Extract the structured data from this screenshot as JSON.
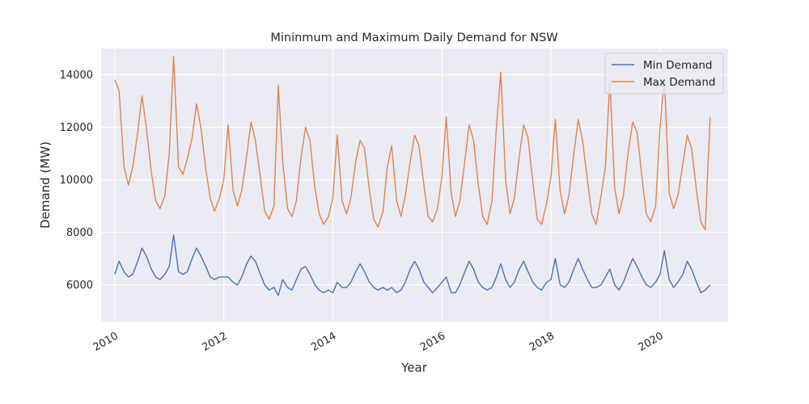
{
  "chart_data": {
    "type": "line",
    "title": "Mininmum and Maximum Daily Demand for NSW",
    "xlabel": "Year",
    "ylabel": "Demand (MW)",
    "xlim": [
      2009.75,
      2021.25
    ],
    "ylim": [
      4600,
      15000
    ],
    "x_ticks": [
      2010,
      2012,
      2014,
      2016,
      2018,
      2020
    ],
    "x_tick_labels": [
      "2010",
      "2012",
      "2014",
      "2016",
      "2018",
      "2020"
    ],
    "y_ticks": [
      6000,
      8000,
      10000,
      12000,
      14000
    ],
    "y_tick_labels": [
      "6000",
      "8000",
      "10000",
      "12000",
      "14000"
    ],
    "grid": true,
    "legend_position": "top-right",
    "colors": {
      "plot_background": "#eaeaf2",
      "grid": "#ffffff",
      "min_series": "#4c72b0",
      "max_series": "#dd8452"
    },
    "series": [
      {
        "name": "Min Demand",
        "color": "#4c72b0",
        "x": [
          2010.0,
          2010.08,
          2010.17,
          2010.25,
          2010.33,
          2010.42,
          2010.5,
          2010.58,
          2010.67,
          2010.75,
          2010.83,
          2010.92,
          2011.0,
          2011.08,
          2011.17,
          2011.25,
          2011.33,
          2011.42,
          2011.5,
          2011.58,
          2011.67,
          2011.75,
          2011.83,
          2011.92,
          2012.0,
          2012.08,
          2012.17,
          2012.25,
          2012.33,
          2012.42,
          2012.5,
          2012.58,
          2012.67,
          2012.75,
          2012.83,
          2012.92,
          2013.0,
          2013.08,
          2013.17,
          2013.25,
          2013.33,
          2013.42,
          2013.5,
          2013.58,
          2013.67,
          2013.75,
          2013.83,
          2013.92,
          2014.0,
          2014.08,
          2014.17,
          2014.25,
          2014.33,
          2014.42,
          2014.5,
          2014.58,
          2014.67,
          2014.75,
          2014.83,
          2014.92,
          2015.0,
          2015.08,
          2015.17,
          2015.25,
          2015.33,
          2015.42,
          2015.5,
          2015.58,
          2015.67,
          2015.75,
          2015.83,
          2015.92,
          2016.0,
          2016.08,
          2016.17,
          2016.25,
          2016.33,
          2016.42,
          2016.5,
          2016.58,
          2016.67,
          2016.75,
          2016.83,
          2016.92,
          2017.0,
          2017.08,
          2017.17,
          2017.25,
          2017.33,
          2017.42,
          2017.5,
          2017.58,
          2017.67,
          2017.75,
          2017.83,
          2017.92,
          2018.0,
          2018.08,
          2018.17,
          2018.25,
          2018.33,
          2018.42,
          2018.5,
          2018.58,
          2018.67,
          2018.75,
          2018.83,
          2018.92,
          2019.0,
          2019.08,
          2019.17,
          2019.25,
          2019.33,
          2019.42,
          2019.5,
          2019.58,
          2019.67,
          2019.75,
          2019.83,
          2019.92,
          2020.0,
          2020.08,
          2020.17,
          2020.25,
          2020.33,
          2020.42,
          2020.5,
          2020.58,
          2020.67,
          2020.75,
          2020.83,
          2020.92
        ],
        "values": [
          6400,
          6900,
          6500,
          6300,
          6400,
          6900,
          7400,
          7100,
          6600,
          6300,
          6200,
          6400,
          6700,
          7900,
          6500,
          6400,
          6500,
          7000,
          7400,
          7100,
          6700,
          6300,
          6200,
          6300,
          6300,
          6300,
          6100,
          6000,
          6300,
          6800,
          7100,
          6900,
          6400,
          6000,
          5800,
          5900,
          5600,
          6200,
          5900,
          5800,
          6200,
          6600,
          6700,
          6400,
          6000,
          5800,
          5700,
          5800,
          5700,
          6100,
          5900,
          5900,
          6100,
          6500,
          6800,
          6500,
          6100,
          5900,
          5800,
          5900,
          5800,
          5900,
          5700,
          5800,
          6100,
          6600,
          6900,
          6600,
          6100,
          5900,
          5700,
          5900,
          6100,
          6300,
          5700,
          5700,
          6000,
          6500,
          6900,
          6600,
          6100,
          5900,
          5800,
          5900,
          6300,
          6800,
          6200,
          5900,
          6100,
          6600,
          6900,
          6500,
          6100,
          5900,
          5800,
          6100,
          6200,
          7000,
          6000,
          5900,
          6100,
          6600,
          7000,
          6600,
          6200,
          5900,
          5900,
          6000,
          6300,
          6600,
          6000,
          5800,
          6100,
          6600,
          7000,
          6700,
          6300,
          6000,
          5900,
          6100,
          6400,
          7300,
          6200,
          5900,
          6100,
          6400,
          6900,
          6600,
          6100,
          5700,
          5800,
          6000
        ]
      },
      {
        "name": "Max Demand",
        "color": "#dd8452",
        "x": [
          2010.0,
          2010.08,
          2010.17,
          2010.25,
          2010.33,
          2010.42,
          2010.5,
          2010.58,
          2010.67,
          2010.75,
          2010.83,
          2010.92,
          2011.0,
          2011.08,
          2011.17,
          2011.25,
          2011.33,
          2011.42,
          2011.5,
          2011.58,
          2011.67,
          2011.75,
          2011.83,
          2011.92,
          2012.0,
          2012.08,
          2012.17,
          2012.25,
          2012.33,
          2012.42,
          2012.5,
          2012.58,
          2012.67,
          2012.75,
          2012.83,
          2012.92,
          2013.0,
          2013.08,
          2013.17,
          2013.25,
          2013.33,
          2013.42,
          2013.5,
          2013.58,
          2013.67,
          2013.75,
          2013.83,
          2013.92,
          2014.0,
          2014.08,
          2014.17,
          2014.25,
          2014.33,
          2014.42,
          2014.5,
          2014.58,
          2014.67,
          2014.75,
          2014.83,
          2014.92,
          2015.0,
          2015.08,
          2015.17,
          2015.25,
          2015.33,
          2015.42,
          2015.5,
          2015.58,
          2015.67,
          2015.75,
          2015.83,
          2015.92,
          2016.0,
          2016.08,
          2016.17,
          2016.25,
          2016.33,
          2016.42,
          2016.5,
          2016.58,
          2016.67,
          2016.75,
          2016.83,
          2016.92,
          2017.0,
          2017.08,
          2017.17,
          2017.25,
          2017.33,
          2017.42,
          2017.5,
          2017.58,
          2017.67,
          2017.75,
          2017.83,
          2017.92,
          2018.0,
          2018.08,
          2018.17,
          2018.25,
          2018.33,
          2018.42,
          2018.5,
          2018.58,
          2018.67,
          2018.75,
          2018.83,
          2018.92,
          2019.0,
          2019.08,
          2019.17,
          2019.25,
          2019.33,
          2019.42,
          2019.5,
          2019.58,
          2019.67,
          2019.75,
          2019.83,
          2019.92,
          2020.0,
          2020.08,
          2020.17,
          2020.25,
          2020.33,
          2020.42,
          2020.5,
          2020.58,
          2020.67,
          2020.75,
          2020.83,
          2020.92
        ],
        "values": [
          13800,
          13400,
          10500,
          9800,
          10500,
          11800,
          13200,
          12000,
          10300,
          9200,
          8900,
          9400,
          11000,
          14700,
          10500,
          10200,
          10800,
          11600,
          12900,
          12000,
          10400,
          9300,
          8800,
          9300,
          10000,
          12100,
          9600,
          9000,
          9600,
          10900,
          12200,
          11500,
          10100,
          8800,
          8500,
          9000,
          13600,
          10700,
          8900,
          8600,
          9200,
          10900,
          12000,
          11500,
          9700,
          8700,
          8300,
          8600,
          9300,
          11700,
          9200,
          8700,
          9300,
          10700,
          11500,
          11200,
          9600,
          8500,
          8200,
          8800,
          10500,
          11300,
          9200,
          8600,
          9400,
          10700,
          11700,
          11300,
          9800,
          8600,
          8400,
          8900,
          10100,
          12400,
          9500,
          8600,
          9200,
          10700,
          12100,
          11500,
          9800,
          8600,
          8300,
          9200,
          12000,
          14100,
          10000,
          8700,
          9300,
          10900,
          12100,
          11600,
          9900,
          8500,
          8300,
          9100,
          10100,
          12300,
          9600,
          8700,
          9400,
          11000,
          12300,
          11500,
          10000,
          8700,
          8300,
          9400,
          10500,
          13800,
          9700,
          8700,
          9400,
          11100,
          12200,
          11800,
          10100,
          8700,
          8400,
          9000,
          12000,
          13900,
          9500,
          8900,
          9400,
          10600,
          11700,
          11200,
          9600,
          8400,
          8100,
          12400
        ]
      }
    ]
  }
}
